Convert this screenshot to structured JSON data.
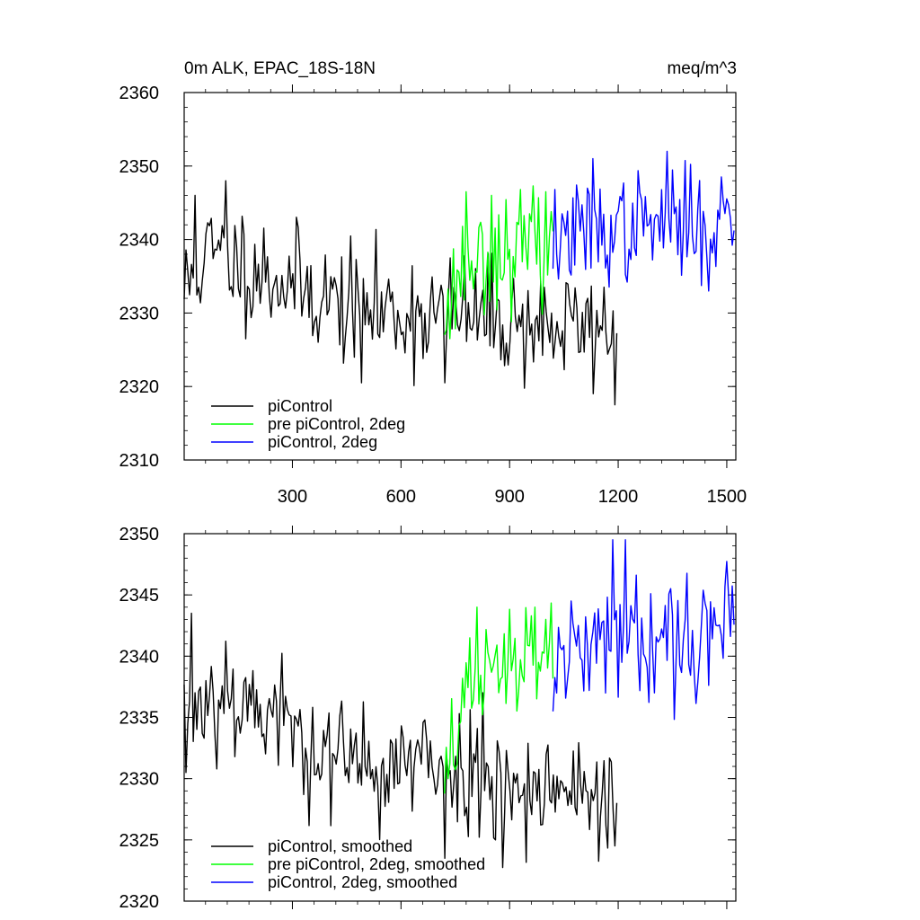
{
  "chart_data": [
    {
      "type": "line",
      "title": "0m ALK, EPAC_18S-18N",
      "units": "meq/m^3",
      "xlabel": "",
      "ylabel": "",
      "xlim": [
        1,
        1525
      ],
      "ylim": [
        2310,
        2360
      ],
      "x_ticks": [
        300,
        600,
        900,
        1200,
        1500
      ],
      "x_tick_labels": [
        "300",
        "600",
        "900",
        "1200",
        "1500"
      ],
      "y_ticks": [
        2310,
        2320,
        2330,
        2340,
        2350,
        2360
      ],
      "y_tick_labels": [
        "2310",
        "2320",
        "2330",
        "2340",
        "2350",
        "2360"
      ],
      "legend_position": "bottom-left",
      "series": [
        {
          "name": "piControl",
          "color": "#000000",
          "x_start": 1,
          "x_end": 1200,
          "anchors": [
            [
              1,
              2333
            ],
            [
              60,
              2338
            ],
            [
              150,
              2337
            ],
            [
              300,
              2334
            ],
            [
              450,
              2331
            ],
            [
              600,
              2330
            ],
            [
              750,
              2330
            ],
            [
              900,
              2329
            ],
            [
              1050,
              2328
            ],
            [
              1200,
              2328
            ]
          ],
          "noise_sd": 4.0,
          "seed": 11,
          "spikes": [
            [
              115,
              2348
            ],
            [
              30,
              2346
            ],
            [
              1192,
              2317.5
            ],
            [
              1200,
              2320
            ],
            [
              490,
              2320.5
            ],
            [
              720,
              2320.5
            ]
          ]
        },
        {
          "name": "pre piControl, 2deg",
          "color": "#00ff00",
          "x_start": 720,
          "x_end": 1020,
          "anchors": [
            [
              720,
              2331
            ],
            [
              780,
              2337
            ],
            [
              860,
              2338
            ],
            [
              940,
              2339
            ],
            [
              1020,
              2339
            ]
          ],
          "noise_sd": 3.6,
          "seed": 23,
          "spikes": [
            [
              735,
              2326.5
            ],
            [
              780,
              2346.5
            ],
            [
              850,
              2346
            ],
            [
              1000,
              2346.5
            ]
          ]
        },
        {
          "name": "piControl, 2deg",
          "color": "#0000ff",
          "x_start": 1020,
          "x_end": 1520,
          "anchors": [
            [
              1020,
              2340
            ],
            [
              1150,
              2341
            ],
            [
              1300,
              2342
            ],
            [
              1400,
              2342
            ],
            [
              1520,
              2343
            ]
          ],
          "noise_sd": 3.6,
          "seed": 37,
          "spikes": [
            [
              1335,
              2352
            ],
            [
              1130,
              2351
            ],
            [
              1450,
              2333
            ]
          ]
        }
      ]
    },
    {
      "type": "line",
      "title": "",
      "xlabel": "",
      "ylabel": "",
      "xlim": [
        1,
        1525
      ],
      "ylim": [
        2320,
        2350
      ],
      "x_ticks": [
        300,
        600,
        900,
        1200,
        1500
      ],
      "y_ticks": [
        2320,
        2325,
        2330,
        2335,
        2340,
        2345,
        2350
      ],
      "y_tick_labels": [
        "2320",
        "2325",
        "2330",
        "2335",
        "2340",
        "2345",
        "2350"
      ],
      "legend_position": "bottom-left",
      "series": [
        {
          "name": "piControl, smoothed",
          "color": "#000000",
          "x_start": 1,
          "x_end": 1200,
          "anchors": [
            [
              1,
              2334
            ],
            [
              60,
              2337
            ],
            [
              150,
              2337
            ],
            [
              300,
              2334
            ],
            [
              450,
              2331
            ],
            [
              600,
              2331
            ],
            [
              750,
              2331
            ],
            [
              900,
              2330
            ],
            [
              1050,
              2329
            ],
            [
              1200,
              2329
            ]
          ],
          "noise_sd": 2.6,
          "seed": 53,
          "spikes": [
            [
              20,
              2343.5
            ],
            [
              1192,
              2324.5
            ],
            [
              720,
              2323.5
            ],
            [
              860,
              2325
            ]
          ]
        },
        {
          "name": "pre piControl, 2deg, smoothed",
          "color": "#00ff00",
          "x_start": 720,
          "x_end": 1020,
          "anchors": [
            [
              720,
              2331
            ],
            [
              800,
              2338
            ],
            [
              900,
              2339
            ],
            [
              1020,
              2341
            ]
          ],
          "noise_sd": 2.2,
          "seed": 67,
          "spikes": [
            [
              730,
              2330
            ],
            [
              810,
              2344
            ],
            [
              970,
              2344
            ],
            [
              1000,
              2343
            ]
          ]
        },
        {
          "name": "piControl, 2deg, smoothed",
          "color": "#0000ff",
          "x_start": 1020,
          "x_end": 1520,
          "anchors": [
            [
              1020,
              2339
            ],
            [
              1150,
              2341
            ],
            [
              1300,
              2342
            ],
            [
              1420,
              2342
            ],
            [
              1520,
              2344
            ]
          ],
          "noise_sd": 2.3,
          "seed": 79,
          "spikes": [
            [
              1185,
              2349.5
            ],
            [
              1220,
              2349.5
            ],
            [
              1300,
              2337
            ]
          ]
        }
      ]
    }
  ]
}
